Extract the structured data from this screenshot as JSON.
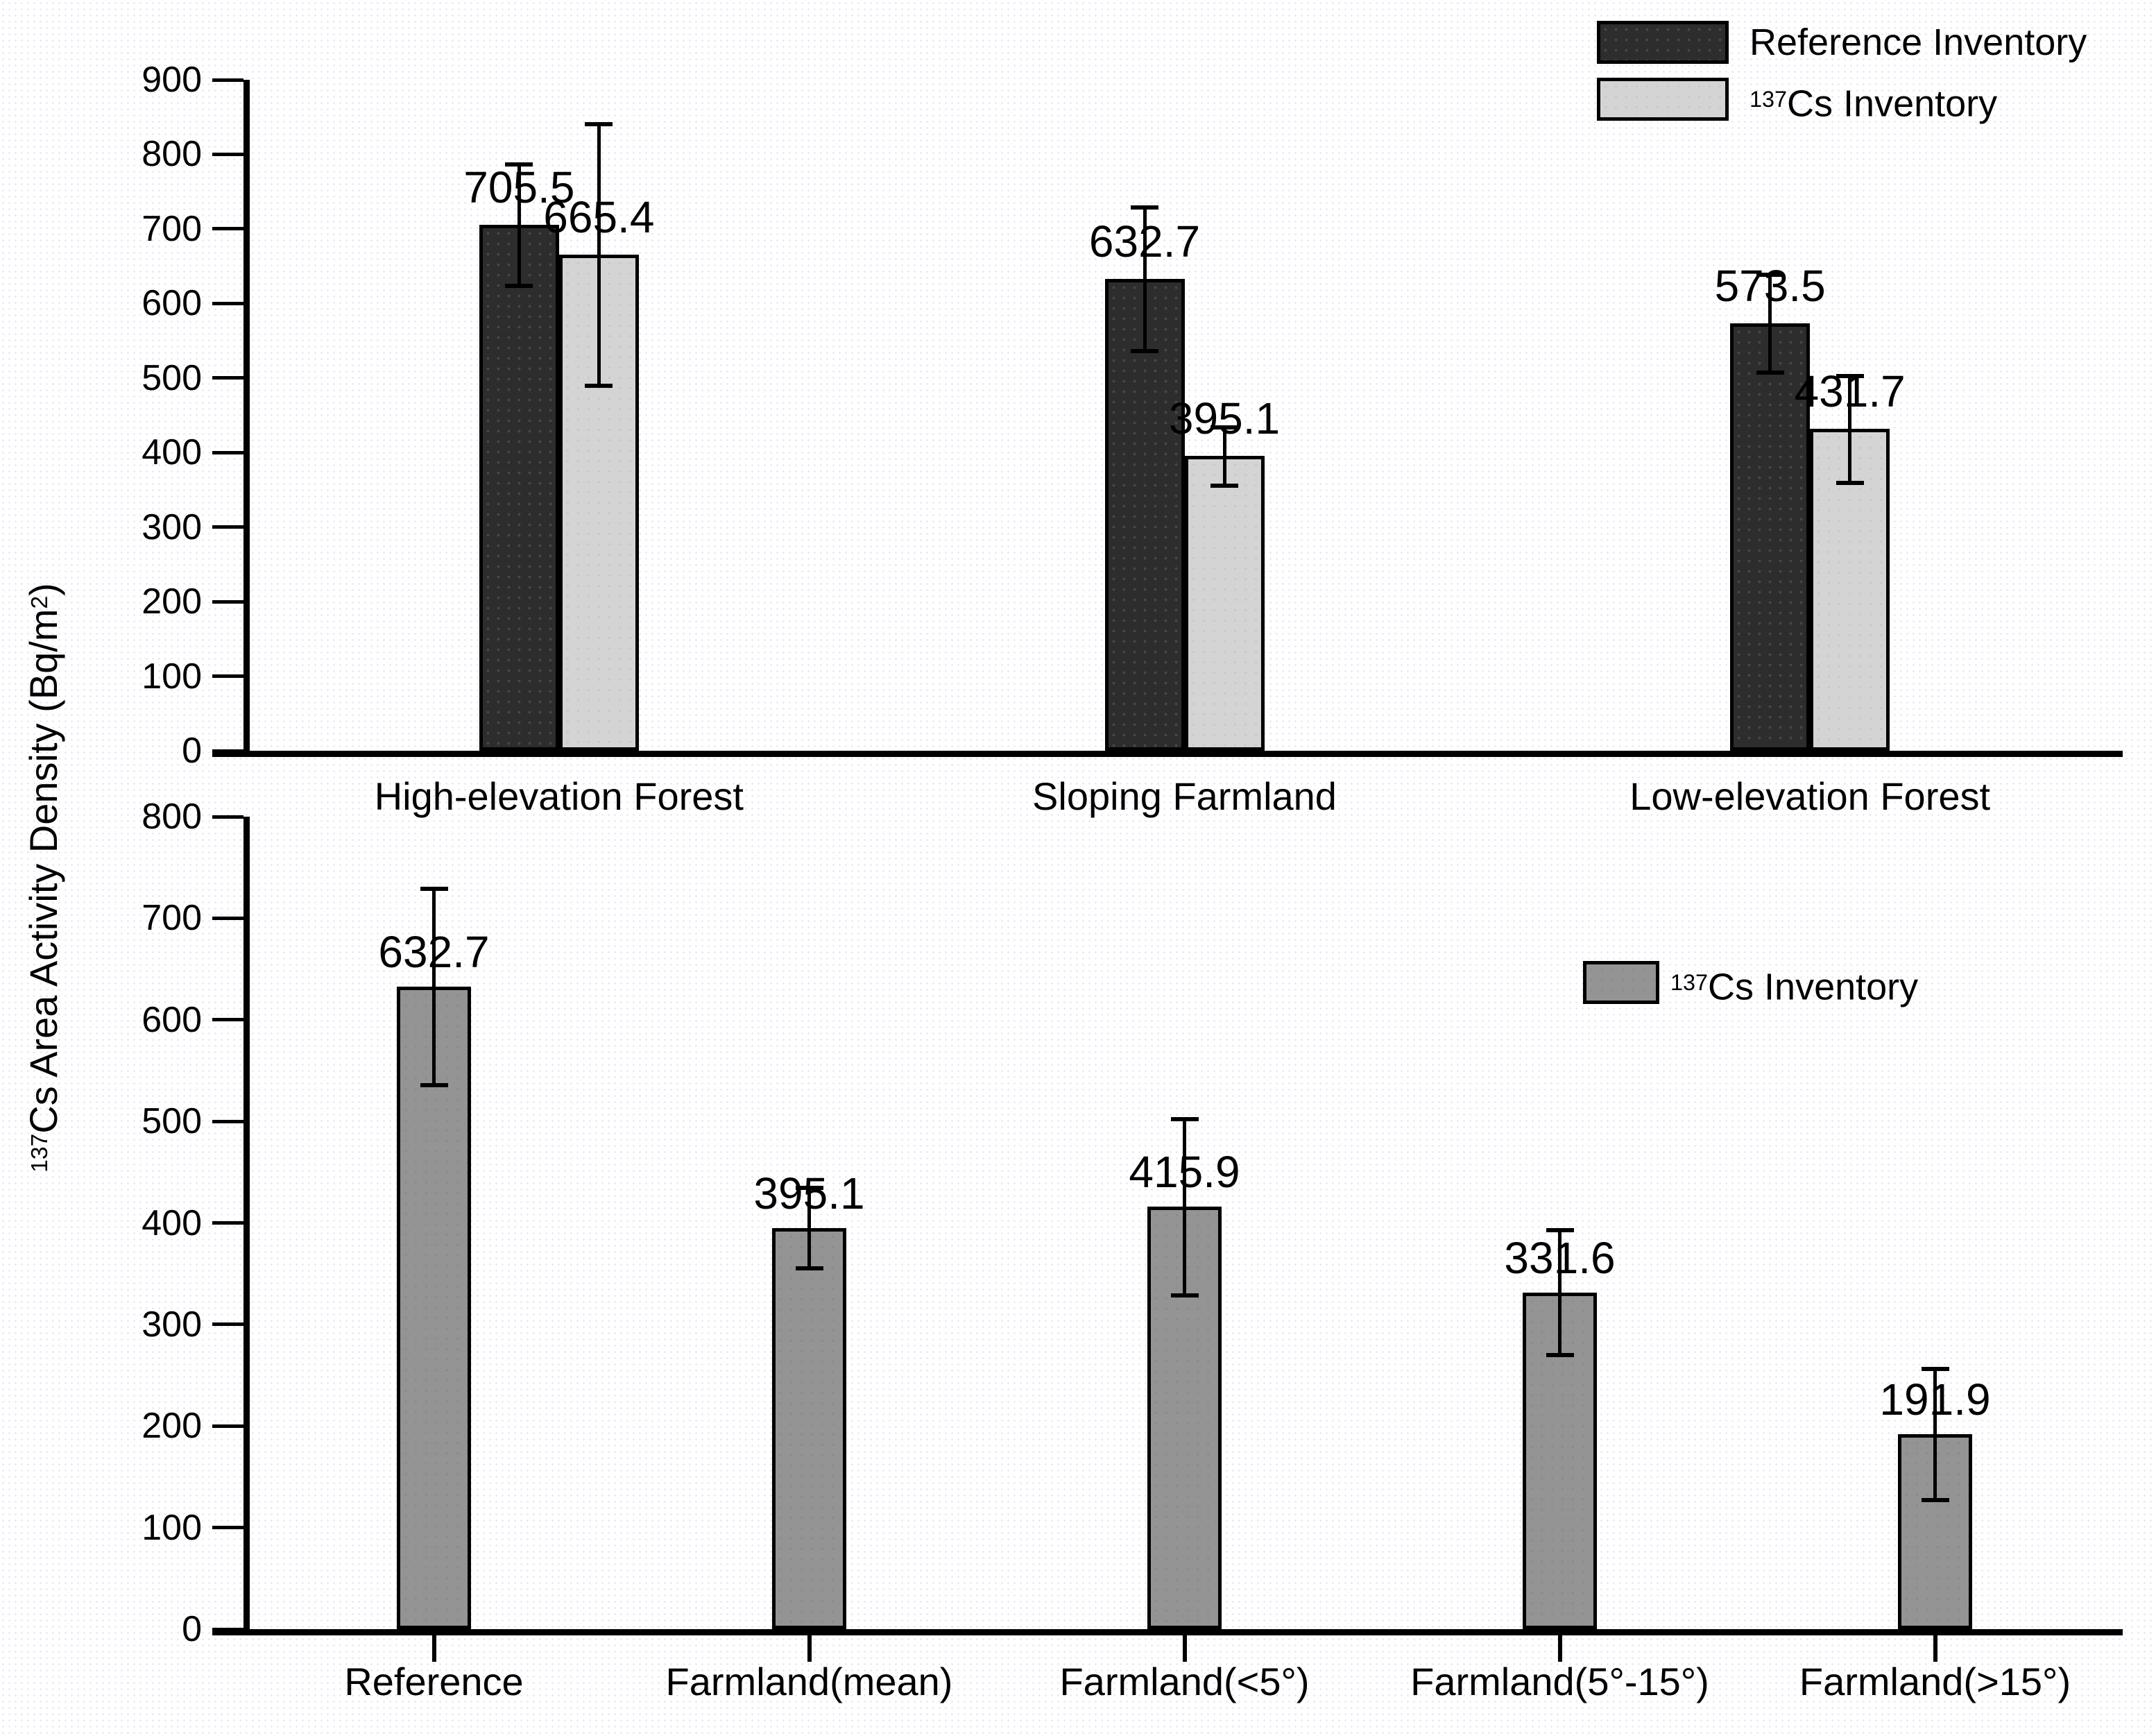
{
  "figure": {
    "y_axis_label": {
      "sup1": "137",
      "text1": "Cs Area Activity Density (Bq/m",
      "sup2": "2",
      "text2": ")"
    }
  },
  "chart_data": [
    {
      "type": "bar",
      "title": "",
      "categories": [
        "High-elevation Forest",
        "Sloping Farmland",
        "Low-elevation Forest"
      ],
      "series": [
        {
          "name_sup": "",
          "name": "Reference Inventory",
          "color": "#2d2d2d",
          "values": [
            705.5,
            632.7,
            573.5
          ],
          "errors": [
            82,
            97,
            66
          ],
          "value_labels": [
            "705.5",
            "632.7",
            "573.5"
          ]
        },
        {
          "name_sup": "137",
          "name": "Cs Inventory",
          "color": "#d4d4d4",
          "values": [
            665.4,
            395.1,
            431.7
          ],
          "errors": [
            176,
            40,
            72
          ],
          "value_labels": [
            "665.4",
            "395.1",
            "431.7"
          ]
        }
      ],
      "ylim": [
        0,
        900
      ],
      "yticks": [
        0,
        100,
        200,
        300,
        400,
        500,
        600,
        700,
        800,
        900
      ],
      "xlabel": "",
      "ylabel": "137Cs Area Activity Density (Bq/m2)",
      "grid": false,
      "error_bars": true,
      "legend_position": "top-right"
    },
    {
      "type": "bar",
      "title": "",
      "categories": [
        "Reference",
        "Farmland(mean)",
        "Farmland(<5°)",
        "Farmland(5°-15°)",
        "Farmland(>15°)"
      ],
      "series": [
        {
          "name_sup": "137",
          "name": "Cs Inventory",
          "color": "#949494",
          "values": [
            632.7,
            395.1,
            415.9,
            331.6,
            191.9
          ],
          "errors": [
            97,
            40,
            87,
            62,
            65
          ],
          "value_labels": [
            "632.7",
            "395.1",
            "415.9",
            "331.6",
            "191.9"
          ]
        }
      ],
      "ylim": [
        0,
        800
      ],
      "yticks": [
        0,
        100,
        200,
        300,
        400,
        500,
        600,
        700,
        800
      ],
      "xlabel": "",
      "ylabel": "137Cs Area Activity Density (Bq/m2)",
      "grid": false,
      "error_bars": true,
      "legend_position": "right-middle"
    }
  ]
}
